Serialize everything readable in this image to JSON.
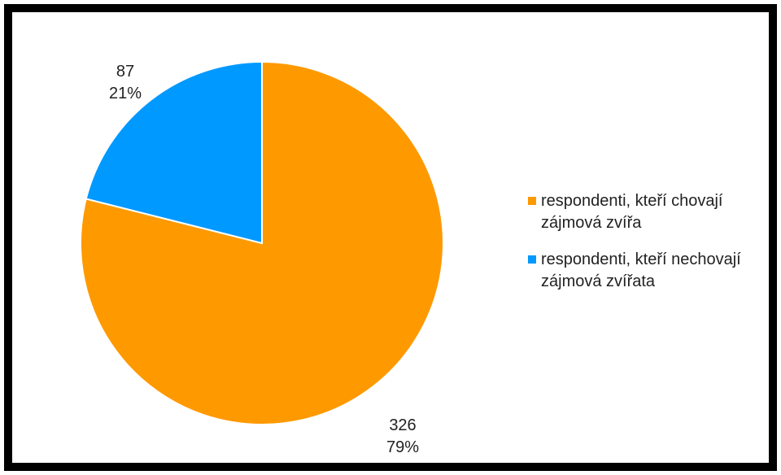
{
  "chart_data": {
    "type": "pie",
    "title": "",
    "categories": [
      "respondenti, kteří chovají zájmová zvířa",
      "respondenti, kteří nechovají zájmová zvířata"
    ],
    "values": [
      326,
      87
    ],
    "percentages": [
      "79%",
      "21%"
    ],
    "value_labels": [
      "326",
      "87"
    ],
    "colors": [
      "#FF9900",
      "#0099FF"
    ],
    "start_angle_deg": 0,
    "direction": "clockwise",
    "legend_position": "right",
    "data_labels_outside": true
  }
}
